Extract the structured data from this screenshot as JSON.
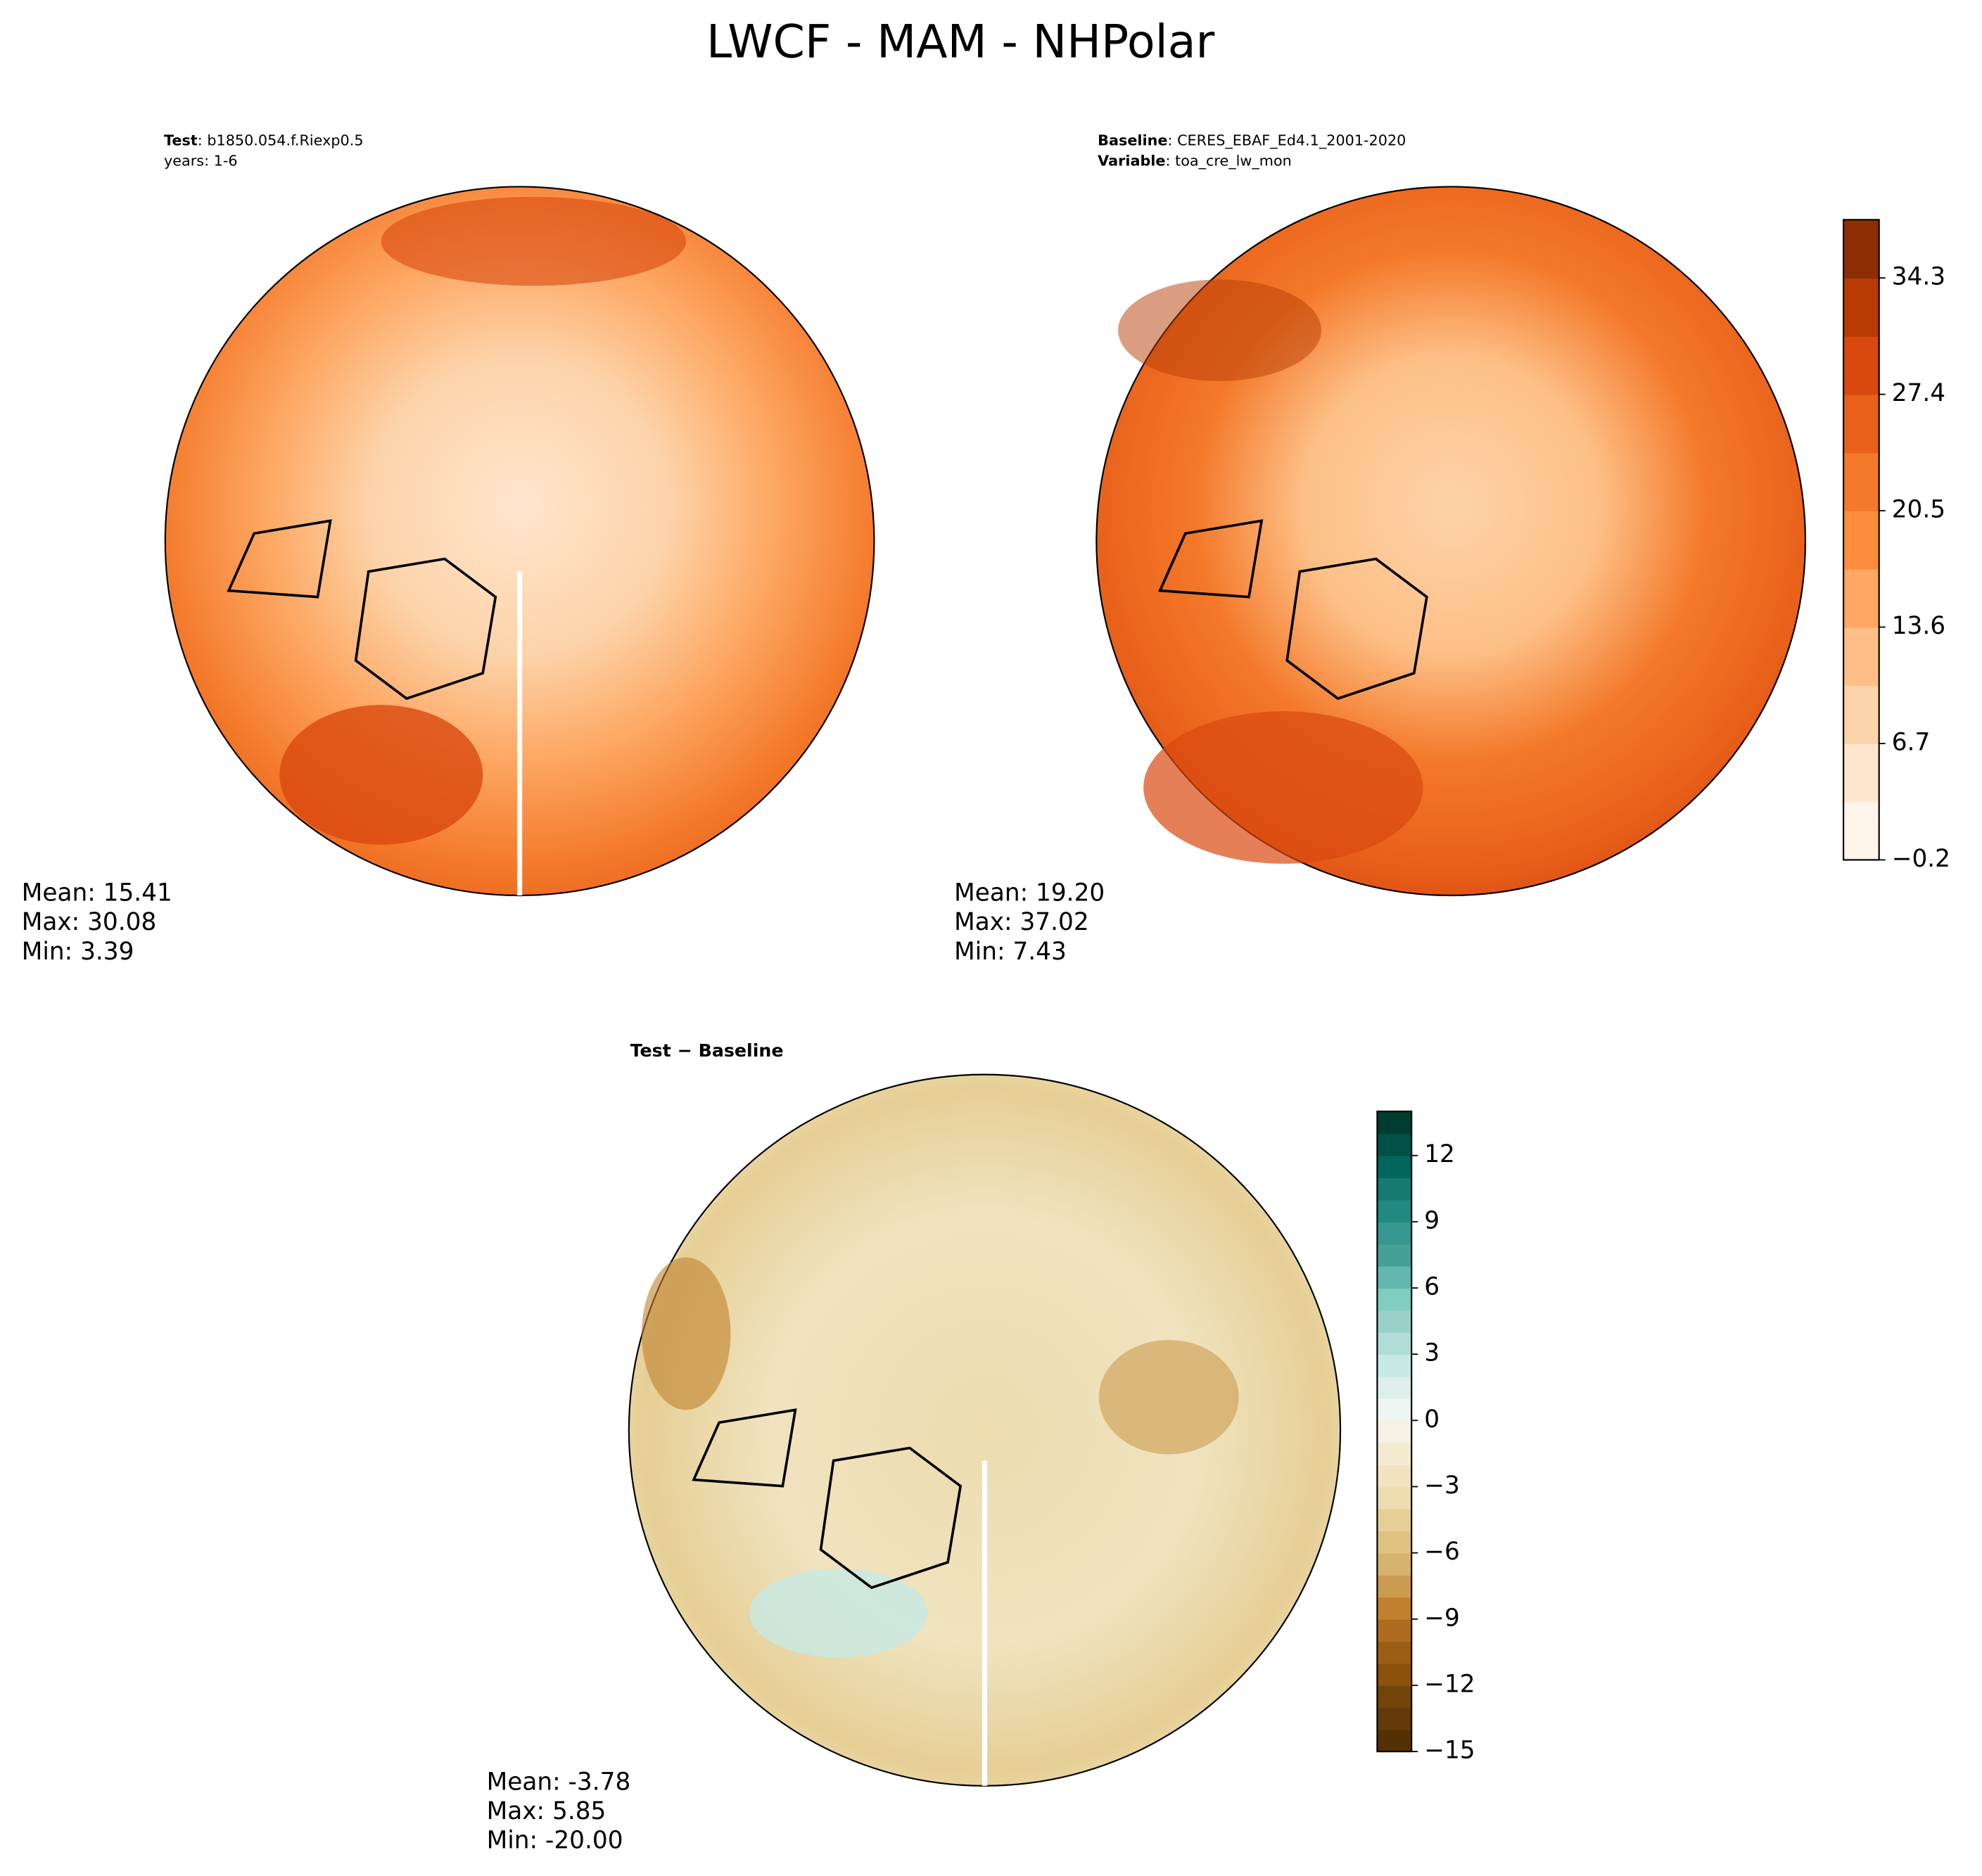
{
  "title": "LWCF - MAM - NHPolar",
  "panels": [
    {
      "header": [
        {
          "key": "Test",
          "value": ": b1850.054.f.Riexp0.5"
        },
        {
          "value": "years: 1-6"
        }
      ],
      "stats": [
        "Mean: 15.41",
        "Max: 30.08",
        "Min:  3.39"
      ]
    },
    {
      "header": [
        {
          "key": "Baseline",
          "value": ": CERES_EBAF_Ed4.1_2001-2020"
        },
        {
          "key": "Variable",
          "value": ": toa_cre_lw_mon"
        }
      ],
      "stats": [
        "Mean: 19.20",
        "Max: 37.02",
        "Min:  7.43"
      ]
    },
    {
      "header": [
        {
          "key": "Test − Baseline"
        }
      ],
      "stats": [
        "Mean: -3.78",
        "Max:  5.85",
        "Min: -20.00"
      ]
    }
  ],
  "colorbars": [
    {
      "ylim": [
        -0.2,
        37.75
      ],
      "yticks": [
        {
          "value": -0.2,
          "label": "−0.2"
        },
        6.7,
        13.6,
        20.5,
        27.4,
        34.3
      ],
      "colors": [
        "#fff5eb",
        "#fee6ce",
        "#fdd3a9",
        "#fdbf86",
        "#fda762",
        "#fd8d3c",
        "#f4792a",
        "#e8601a",
        "#d9480f",
        "#b83b04",
        "#8c2d04"
      ]
    },
    {
      "ylim": [
        -15,
        14
      ],
      "yticks": [
        {
          "value": -15,
          "label": "−15"
        },
        {
          "value": -12,
          "label": "−12"
        },
        {
          "value": -9,
          "label": "−9"
        },
        {
          "value": -6,
          "label": "−6"
        },
        {
          "value": -3,
          "label": "−3"
        },
        0,
        3,
        6,
        9,
        12
      ],
      "colors": [
        "#543005",
        "#633a07",
        "#72440a",
        "#8c510a",
        "#9c5e14",
        "#ad6c1f",
        "#bf812d",
        "#cb9b50",
        "#d6b36f",
        "#dfc27d",
        "#e6cf95",
        "#ecdcae",
        "#f0e3bf",
        "#f3ead0",
        "#f5f1e4",
        "#eef5f3",
        "#dcefeb",
        "#c7eae5",
        "#b0ddd6",
        "#98d1c7",
        "#80cdc1",
        "#62b8ac",
        "#45a196",
        "#35978f",
        "#238a82",
        "#167a72",
        "#01665e",
        "#005045",
        "#003c30"
      ]
    }
  ]
}
